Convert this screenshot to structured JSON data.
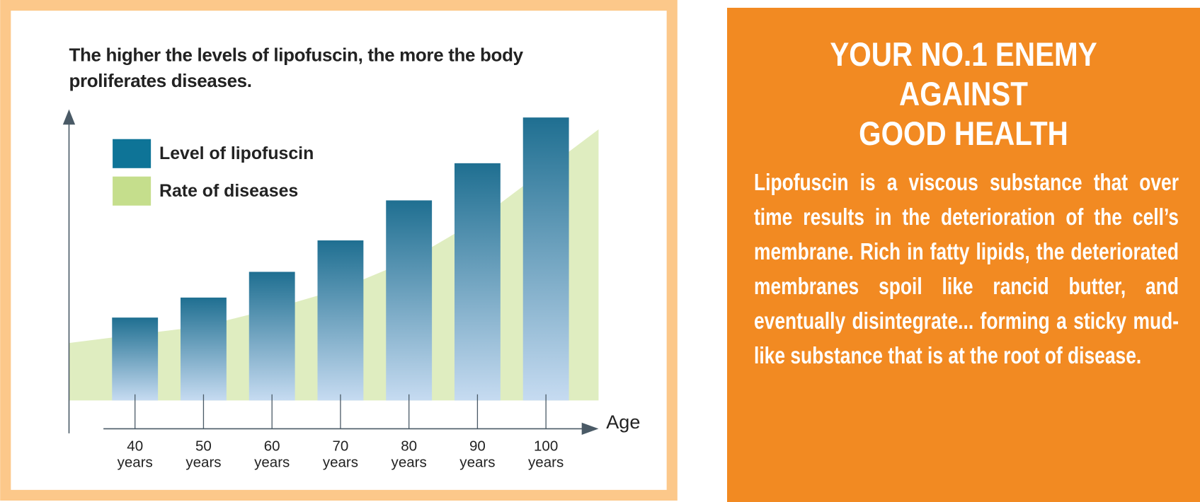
{
  "chart_data": {
    "type": "bar-area",
    "title": "The higher the levels of lipofuscin, the more the body proliferates diseases.",
    "x_label": "Age",
    "categories": [
      "40 years",
      "50 years",
      "60 years",
      "70 years",
      "80 years",
      "90 years",
      "100 years"
    ],
    "ylim": [
      0,
      100
    ],
    "series": [
      {
        "name": "Level of lipofuscin",
        "kind": "bar",
        "color": "#0e7497",
        "values": [
          29,
          36,
          45,
          56,
          70,
          83,
          99
        ]
      },
      {
        "name": "Rate of diseases",
        "kind": "area",
        "color": "#c5de8c",
        "values": [
          23,
          26,
          32,
          39,
          49,
          63,
          81
        ]
      }
    ]
  },
  "panel": {
    "heading": [
      "YOUR NO.1 ENEMY",
      "AGAINST",
      "GOOD HEALTH"
    ],
    "body": "Lipofuscin is a viscous substance that over time results in the deterioration of the cell’s membrane. Rich in fatty lipids, the deteriorated membranes spoil like rancid butter, and eventually disintegrate... forming a sticky mud-like substance that is at the root of disease."
  }
}
